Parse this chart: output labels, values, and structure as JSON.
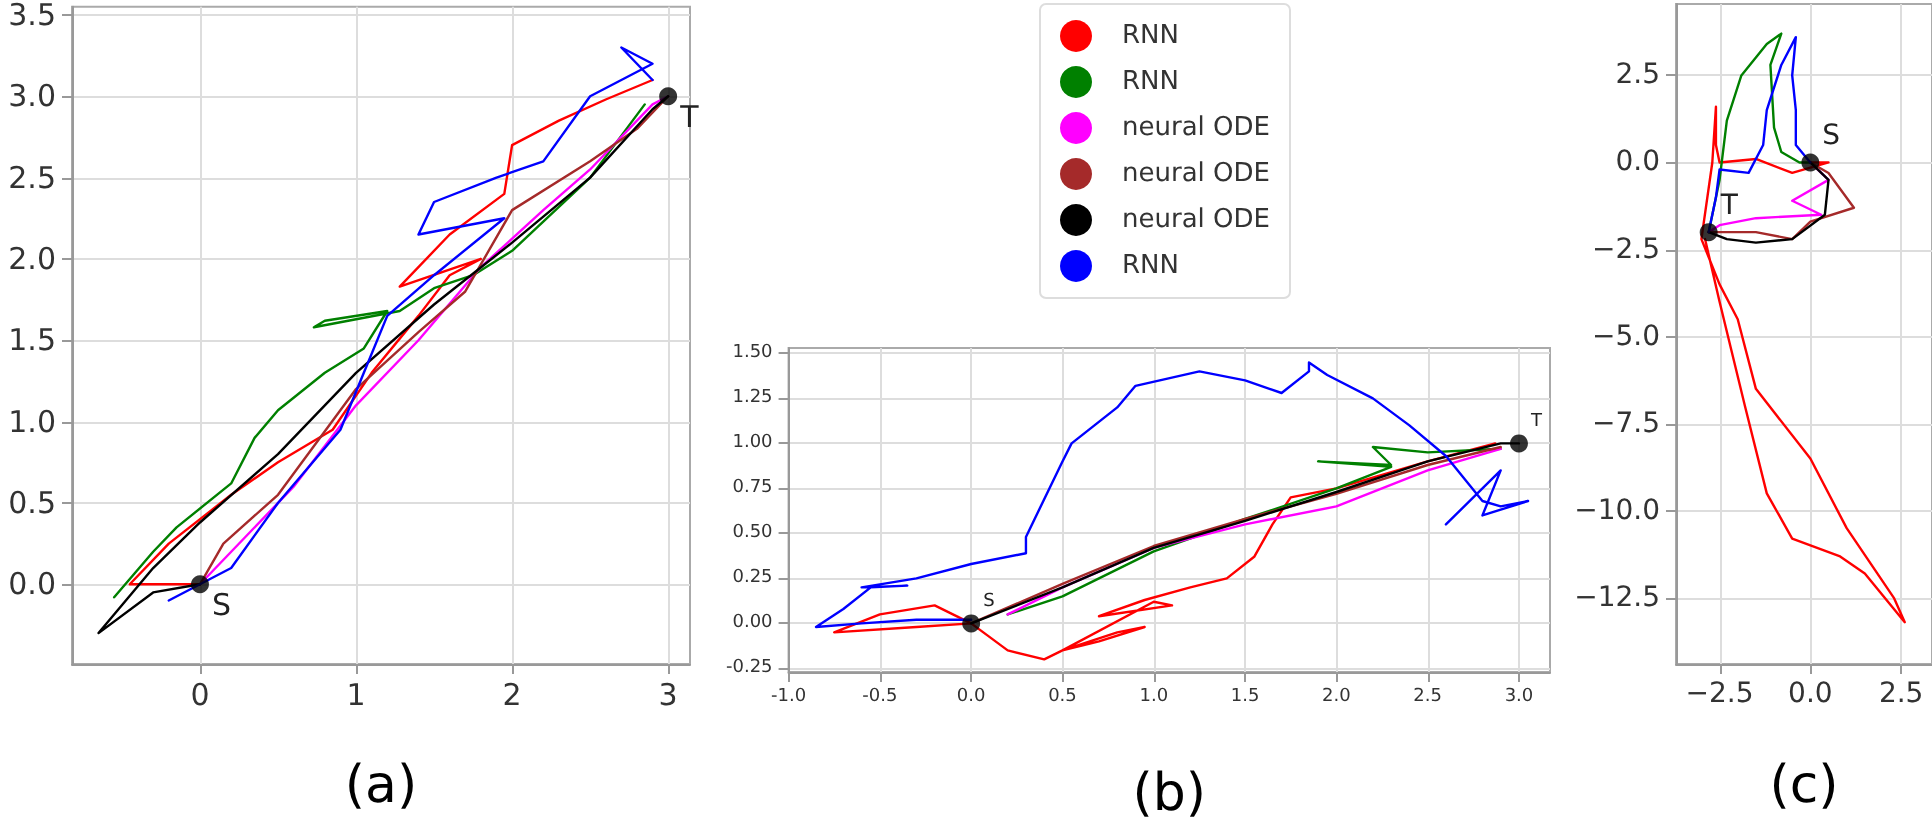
{
  "chart_data": [
    {
      "type": "line",
      "xlabel": "(a)",
      "marker": "none",
      "grid": true,
      "legend": false,
      "xlim": [
        -0.82,
        3.14
      ],
      "ylim": [
        -0.49,
        3.55
      ],
      "xticks": [
        0,
        1,
        2,
        3
      ],
      "yticks": [
        {
          "value": 0,
          "label": "0.0"
        },
        {
          "value": 0.5,
          "label": "0.5"
        },
        {
          "value": 1,
          "label": "1.0"
        },
        {
          "value": 1.5,
          "label": "1.5"
        },
        {
          "value": 2,
          "label": "2.0"
        },
        {
          "value": 2.5,
          "label": "2.5"
        },
        {
          "value": 3,
          "label": "3.0"
        },
        {
          "value": 3.5,
          "label": "3.5"
        }
      ],
      "annotations": [
        {
          "text": "S",
          "x": 0,
          "y": 0
        },
        {
          "text": "T",
          "x": 3,
          "y": 3
        }
      ],
      "series": [
        {
          "color": "#ff0000",
          "x": [
            0,
            -0.45,
            -0.2,
            0.2,
            0.5,
            0.85,
            1.1,
            1.4,
            1.6,
            1.8,
            1.28,
            1.6,
            1.95,
            2,
            2.3,
            2.6,
            2.9
          ],
          "values": [
            0,
            0,
            0.25,
            0.55,
            0.75,
            0.95,
            1.3,
            1.65,
            1.9,
            2.0,
            1.83,
            2.15,
            2.4,
            2.7,
            2.85,
            2.98,
            3.1
          ]
        },
        {
          "color": "#008000",
          "x": [
            -0.55,
            -0.3,
            -0.15,
            0.2,
            0.35,
            0.5,
            0.8,
            1.05,
            1.2,
            0.8,
            0.73,
            1.28,
            1.5,
            1.75,
            2,
            2.5,
            2.85
          ],
          "values": [
            -0.08,
            0.2,
            0.35,
            0.62,
            0.9,
            1.07,
            1.3,
            1.45,
            1.68,
            1.62,
            1.58,
            1.68,
            1.82,
            1.9,
            2.05,
            2.5,
            2.95
          ]
        },
        {
          "color": "#ff00ff",
          "x": [
            0,
            0.3,
            0.6,
            1,
            1.4,
            1.8,
            2.2,
            2.5,
            2.9,
            3
          ],
          "values": [
            0,
            0.3,
            0.6,
            1.1,
            1.5,
            1.95,
            2.3,
            2.55,
            2.95,
            3
          ]
        },
        {
          "color": "#a52a2a",
          "x": [
            0,
            0.15,
            0.5,
            1,
            1.4,
            1.7,
            2,
            2.5,
            2.8,
            3
          ],
          "values": [
            0,
            0.25,
            0.55,
            1.2,
            1.55,
            1.8,
            2.3,
            2.6,
            2.8,
            3
          ]
        },
        {
          "color": "#000000",
          "x": [
            0,
            -0.3,
            -0.65,
            -0.3,
            0,
            0.5,
            1,
            1.5,
            2,
            2.5,
            2.9,
            3
          ],
          "values": [
            0,
            -0.05,
            -0.3,
            0.1,
            0.38,
            0.8,
            1.3,
            1.72,
            2.1,
            2.5,
            2.92,
            3
          ]
        },
        {
          "color": "#0000ff",
          "x": [
            -0.2,
            0,
            0.2,
            0.5,
            0.9,
            1.05,
            1.2,
            1.5,
            1.95,
            1.4,
            1.5,
            1.9,
            2.2,
            2.5,
            2.9,
            2.7,
            2.8,
            2.9
          ],
          "values": [
            -0.1,
            0,
            0.1,
            0.5,
            0.95,
            1.3,
            1.65,
            1.9,
            2.25,
            2.15,
            2.35,
            2.5,
            2.6,
            3.0,
            3.2,
            3.3,
            3.2,
            3.1
          ]
        },
        {
          "type": "scatter",
          "marker": "circle",
          "color": "#000000",
          "x": [
            0,
            3
          ],
          "values": [
            0,
            3
          ]
        }
      ]
    },
    {
      "type": "line",
      "xlabel": "(b)",
      "marker": "none",
      "grid": true,
      "legend": "top",
      "xlim": [
        -1.0,
        3.17
      ],
      "ylim": [
        -0.27,
        1.53
      ],
      "xticks": [
        {
          "value": -1,
          "label": "-1.0"
        },
        {
          "value": -0.5,
          "label": "-0.5"
        },
        {
          "value": 0,
          "label": "0.0"
        },
        {
          "value": 0.5,
          "label": "0.5"
        },
        {
          "value": 1,
          "label": "1.0"
        },
        {
          "value": 1.5,
          "label": "1.5"
        },
        {
          "value": 2,
          "label": "2.0"
        },
        {
          "value": 2.5,
          "label": "2.5"
        },
        {
          "value": 3,
          "label": "3.0"
        }
      ],
      "yticks": [
        {
          "value": -0.25,
          "label": "-0.25"
        },
        {
          "value": 0,
          "label": "0.00"
        },
        {
          "value": 0.25,
          "label": "0.25"
        },
        {
          "value": 0.5,
          "label": "0.50"
        },
        {
          "value": 0.75,
          "label": "0.75"
        },
        {
          "value": 1,
          "label": "1.00"
        },
        {
          "value": 1.25,
          "label": "1.25"
        },
        {
          "value": 1.5,
          "label": "1.50"
        }
      ],
      "annotations": [
        {
          "text": "S",
          "x": 0,
          "y": 0
        },
        {
          "text": "T",
          "x": 3,
          "y": 1
        }
      ],
      "series": [
        {
          "name": "RNN",
          "color": "#ff0000",
          "x": [
            0,
            -0.2,
            -0.5,
            -0.75,
            -0.3,
            0,
            0.2,
            0.4,
            0.5,
            0.8,
            0.95,
            0.7,
            0.5,
            1.0,
            1.1,
            0.7,
            0.95,
            1.2,
            1.4,
            1.55,
            1.65,
            1.75,
            2.0,
            2.5,
            2.87
          ],
          "values": [
            0,
            0.1,
            0.05,
            -0.05,
            -0.02,
            0,
            -0.15,
            -0.2,
            -0.15,
            -0.05,
            -0.02,
            -0.1,
            -0.15,
            0.12,
            0.1,
            0.04,
            0.13,
            0.2,
            0.25,
            0.37,
            0.55,
            0.7,
            0.75,
            0.9,
            1.0
          ]
        },
        {
          "name": "RNN",
          "color": "#008000",
          "x": [
            0.2,
            0.5,
            1,
            1.5,
            2.0,
            2.3,
            1.9,
            2.3,
            2.2,
            2.5,
            2.9
          ],
          "values": [
            0.05,
            0.15,
            0.4,
            0.58,
            0.75,
            0.87,
            0.9,
            0.88,
            0.98,
            0.95,
            0.97
          ]
        },
        {
          "name": "neural ODE",
          "color": "#ff00ff",
          "x": [
            0.2,
            0.5,
            1,
            1.5,
            2,
            2.5,
            2.9
          ],
          "values": [
            0.05,
            0.2,
            0.42,
            0.55,
            0.65,
            0.85,
            0.97
          ]
        },
        {
          "name": "neural ODE",
          "color": "#a52a2a",
          "x": [
            0,
            0.5,
            1,
            1.5,
            2,
            2.5,
            2.9
          ],
          "values": [
            0,
            0.22,
            0.43,
            0.58,
            0.72,
            0.88,
            0.98
          ]
        },
        {
          "name": "neural ODE",
          "color": "#000000",
          "x": [
            0,
            0.5,
            1,
            1.5,
            2,
            2.5,
            2.9,
            3
          ],
          "values": [
            0,
            0.2,
            0.42,
            0.57,
            0.73,
            0.9,
            1.0,
            1.0
          ]
        },
        {
          "name": "RNN",
          "color": "#0000ff",
          "x": [
            0,
            -0.3,
            -0.6,
            -0.85,
            -0.7,
            -0.55,
            -0.35,
            -0.6,
            -0.3,
            0,
            0.3,
            0.3,
            0.5,
            0.55,
            0.8,
            0.9,
            1.25,
            1.5,
            1.7,
            1.85,
            1.85,
            1.95,
            2.2,
            2.4,
            2.6,
            2.8,
            2.9,
            3.05,
            2.8,
            2.9,
            2.6
          ],
          "values": [
            0.02,
            0.02,
            0,
            -0.02,
            0.08,
            0.2,
            0.21,
            0.2,
            0.25,
            0.33,
            0.39,
            0.48,
            0.9,
            1.0,
            1.2,
            1.32,
            1.4,
            1.35,
            1.28,
            1.4,
            1.45,
            1.38,
            1.25,
            1.1,
            0.93,
            0.68,
            0.65,
            0.68,
            0.6,
            0.85,
            0.55
          ]
        },
        {
          "type": "scatter",
          "marker": "circle",
          "color": "#000000",
          "x": [
            0,
            3
          ],
          "values": [
            0,
            1
          ]
        }
      ]
    },
    {
      "type": "line",
      "xlabel": "(c)",
      "marker": "none",
      "grid": true,
      "legend": false,
      "xlim": [
        -3.7,
        3.35
      ],
      "ylim": [
        -14.4,
        4.55
      ],
      "xticks": [
        {
          "value": -2.5,
          "label": "−2.5"
        },
        {
          "value": 0,
          "label": "0.0"
        },
        {
          "value": 2.5,
          "label": "2.5"
        }
      ],
      "yticks": [
        {
          "value": -12.5,
          "label": "−12.5"
        },
        {
          "value": -10,
          "label": "−10.0"
        },
        {
          "value": -7.5,
          "label": "−7.5"
        },
        {
          "value": -5,
          "label": "−5.0"
        },
        {
          "value": -2.5,
          "label": "−2.5"
        },
        {
          "value": 0,
          "label": "0.0"
        },
        {
          "value": 2.5,
          "label": "2.5"
        }
      ],
      "annotations": [
        {
          "text": "S",
          "x": 0,
          "y": 0
        },
        {
          "text": "T",
          "x": -2.8,
          "y": -2
        }
      ],
      "series": [
        {
          "color": "#ff0000",
          "x": [
            0,
            0.5,
            -0.5,
            -1.5,
            -2.5,
            -2.6,
            -2.6,
            -2.7,
            -3,
            -2.5,
            -2,
            -1.5,
            0,
            1,
            2.3,
            2.6,
            1.5,
            0.8,
            -0.5,
            -1.2,
            -1.8,
            -2.5,
            -2.9
          ],
          "values": [
            0,
            0,
            -0.3,
            0.1,
            0,
            0.5,
            1.6,
            0,
            -2.2,
            -3.5,
            -4.5,
            -6.5,
            -8.5,
            -10.5,
            -12.5,
            -13.2,
            -11.8,
            -11.3,
            -10.8,
            -9.5,
            -7,
            -4,
            -2.2
          ]
        },
        {
          "color": "#008000",
          "x": [
            -2.8,
            -2.5,
            -2.3,
            -1.9,
            -1.2,
            -0.8,
            -1.1,
            -1,
            -0.8,
            -0.3,
            0
          ],
          "values": [
            -2,
            -0.5,
            1.2,
            2.5,
            3.4,
            3.7,
            2.8,
            1,
            0.3,
            0,
            0
          ]
        },
        {
          "color": "#ff00ff",
          "x": [
            0,
            0.5,
            -0.5,
            0.3,
            -1.5,
            -2.5,
            -2.8
          ],
          "values": [
            0,
            -0.5,
            -1.1,
            -1.5,
            -1.6,
            -1.8,
            -2
          ]
        },
        {
          "color": "#a52a2a",
          "x": [
            0,
            0.5,
            1.2,
            0,
            -0.5,
            -1.5,
            -2.8
          ],
          "values": [
            0,
            -0.3,
            -1.3,
            -1.7,
            -2.2,
            -2,
            -2
          ]
        },
        {
          "color": "#000000",
          "x": [
            0,
            0.5,
            0.4,
            -0.5,
            -1.5,
            -2.3,
            -2.8
          ],
          "values": [
            0,
            -0.5,
            -1.5,
            -2.2,
            -2.3,
            -2.2,
            -2
          ]
        },
        {
          "color": "#0000ff",
          "x": [
            0,
            -0.4,
            -0.4,
            -0.5,
            -0.4,
            -0.8,
            -1.2,
            -1.3,
            -1.7,
            -2.5,
            -2.6,
            -2.8
          ],
          "values": [
            0,
            0.5,
            1.5,
            2.5,
            3.6,
            2.8,
            1.5,
            0.5,
            -0.3,
            -0.2,
            -1,
            -2
          ]
        },
        {
          "type": "scatter",
          "marker": "circle",
          "color": "#000000",
          "x": [
            0,
            -2.8
          ],
          "values": [
            0,
            -2
          ]
        }
      ]
    }
  ]
}
